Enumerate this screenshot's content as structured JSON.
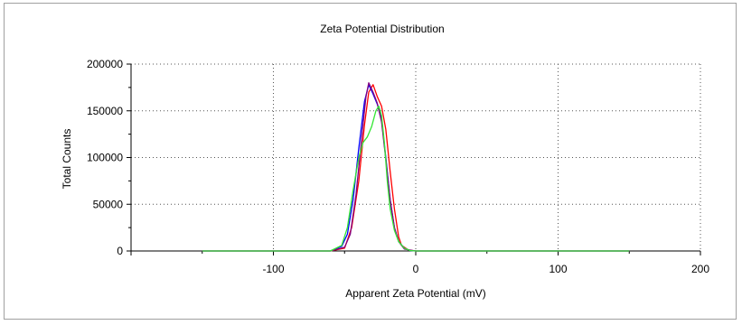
{
  "chart_data": {
    "type": "line",
    "title": "Zeta Potential Distribution",
    "xlabel": "Apparent Zeta Potential (mV)",
    "ylabel": "Total Counts",
    "xlim": [
      -200,
      200
    ],
    "ylim": [
      0,
      200000
    ],
    "x_ticks": [
      -100,
      0,
      100,
      200
    ],
    "x_tick_labels": [
      "-100",
      "0",
      "100",
      "200"
    ],
    "y_ticks": [
      0,
      50000,
      100000,
      150000,
      200000
    ],
    "y_tick_labels": [
      "0",
      "50000",
      "100000",
      "150000",
      "200000"
    ],
    "grid": true,
    "legend": "none",
    "series": [
      {
        "color": "#ff0000",
        "x": [
          -150,
          -60,
          -50,
          -45,
          -40,
          -36,
          -33,
          -30,
          -27,
          -24,
          -21,
          -18,
          -15,
          -12,
          -10,
          -5,
          0,
          50,
          150
        ],
        "y": [
          0,
          0,
          3000,
          25000,
          75000,
          135000,
          170000,
          178000,
          165000,
          155000,
          130000,
          85000,
          45000,
          15000,
          6000,
          1000,
          0,
          0,
          0
        ]
      },
      {
        "color": "#0000ff",
        "x": [
          -150,
          -60,
          -52,
          -48,
          -44,
          -40,
          -36,
          -33,
          -30,
          -27,
          -24,
          -21,
          -18,
          -15,
          -12,
          -8,
          -4,
          0,
          50,
          150
        ],
        "y": [
          0,
          0,
          5000,
          18000,
          55000,
          110000,
          160000,
          178000,
          168000,
          157000,
          140000,
          100000,
          55000,
          25000,
          10000,
          3000,
          500,
          0,
          0,
          0
        ]
      },
      {
        "color": "#800080",
        "x": [
          -150,
          -60,
          -50,
          -46,
          -42,
          -38,
          -35,
          -33,
          -30,
          -27,
          -24,
          -21,
          -18,
          -15,
          -12,
          -8,
          0,
          50,
          150
        ],
        "y": [
          0,
          0,
          4000,
          18000,
          60000,
          120000,
          165000,
          180000,
          170000,
          158000,
          138000,
          98000,
          55000,
          25000,
          10000,
          2000,
          0,
          0,
          0
        ]
      },
      {
        "color": "#33e633",
        "x": [
          -150,
          -60,
          -52,
          -48,
          -44,
          -40,
          -37,
          -34,
          -31,
          -28,
          -26,
          -24,
          -22,
          -20,
          -18,
          -15,
          -12,
          -8,
          -4,
          0,
          50,
          150
        ],
        "y": [
          0,
          0,
          6000,
          25000,
          65000,
          100000,
          116000,
          122000,
          133000,
          150000,
          155000,
          145000,
          115000,
          75000,
          45000,
          22000,
          10000,
          3000,
          500,
          0,
          0,
          0
        ]
      }
    ]
  }
}
